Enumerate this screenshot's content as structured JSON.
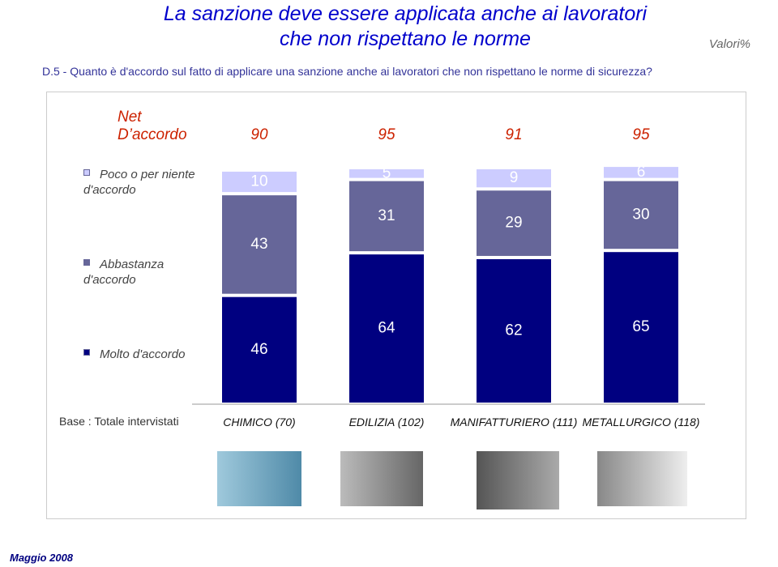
{
  "chart_data": {
    "type": "bar",
    "stacked": true,
    "title": [
      "La sanzione deve essere applicata anche ai lavoratori",
      "che non rispettano le norme"
    ],
    "subtitle": "Valori%",
    "question": "D.5 - Quanto è d'accordo sul fatto di applicare una sanzione anche ai lavoratori che non rispettano le norme di sicurezza?",
    "net_label": [
      "Net",
      "D’accordo"
    ],
    "net_values": [
      90,
      95,
      91,
      95
    ],
    "categories": [
      "CHIMICO (70)",
      "EDILIZIA (102)",
      "MANIFATTURIERO (111)",
      "METALLURGICO (118)"
    ],
    "series": [
      {
        "name": "Molto d'accordo",
        "color": "#000080",
        "values": [
          46,
          64,
          62,
          65
        ]
      },
      {
        "name": "Abbastanza d'accordo",
        "color": "#666699",
        "values": [
          43,
          31,
          29,
          30
        ]
      },
      {
        "name": "Poco o per niente d'accordo",
        "color": "#ccccff",
        "values": [
          10,
          5,
          9,
          6
        ]
      }
    ],
    "ylim": [
      0,
      100
    ],
    "base_label": "Base : Totale intervistati",
    "footer": "Maggio 2008"
  }
}
